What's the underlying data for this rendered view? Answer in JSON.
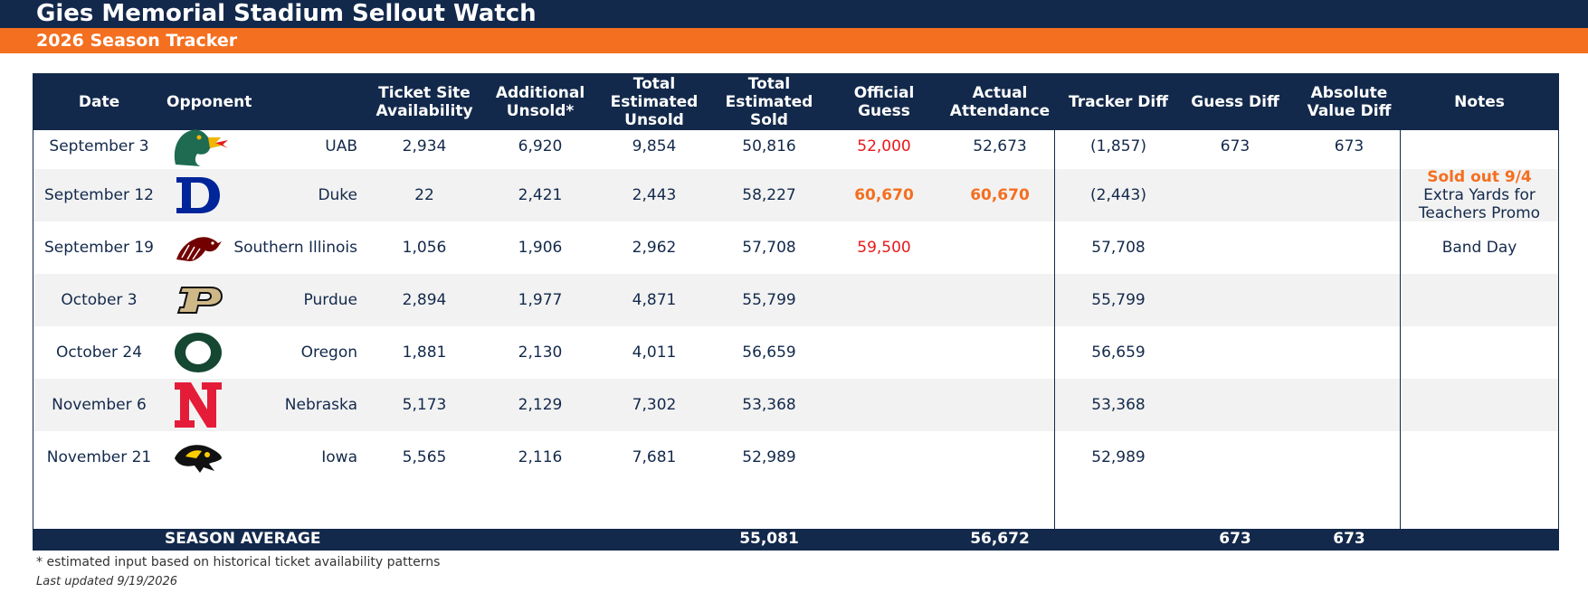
{
  "title": "Gies Memorial Stadium Sellout Watch",
  "subtitle": "2026 Season Tracker",
  "headers": {
    "date": "Date",
    "opponent": "Opponent",
    "ticket_site": [
      "Ticket Site",
      "Availability"
    ],
    "additional_unsold": [
      "Additional",
      "Unsold*"
    ],
    "total_unsold": [
      "Total",
      "Estimated",
      "Unsold"
    ],
    "total_sold": [
      "Total",
      "Estimated",
      "Sold"
    ],
    "official_guess": [
      "Official",
      "Guess"
    ],
    "actual_attendance": [
      "Actual",
      "Attendance"
    ],
    "tracker_diff": "Tracker Diff",
    "guess_diff": "Guess Diff",
    "abs_diff": [
      "Absolute",
      "Value Diff"
    ],
    "notes": "Notes"
  },
  "rows": [
    {
      "date": "September 3",
      "logo": "uab-dragon-logo",
      "opponent": "UAB",
      "ticket_site": "2,934",
      "additional_unsold": "6,920",
      "total_unsold": "9,854",
      "total_sold": "50,816",
      "official_guess": "52,000",
      "guess_style": "red",
      "actual": "52,673",
      "actual_style": "normal",
      "tracker_diff": "(1,857)",
      "guess_diff": "673",
      "abs_diff": "673",
      "note_highlight": "",
      "note_lines": []
    },
    {
      "date": "September 12",
      "logo": "duke-d-logo",
      "opponent": "Duke",
      "ticket_site": "22",
      "additional_unsold": "2,421",
      "total_unsold": "2,443",
      "total_sold": "58,227",
      "official_guess": "60,670",
      "guess_style": "orange",
      "actual": "60,670",
      "actual_style": "orange",
      "tracker_diff": "(2,443)",
      "guess_diff": "",
      "abs_diff": "",
      "note_highlight": "Sold out 9/4",
      "note_lines": [
        "Extra Yards for",
        "Teachers Promo"
      ]
    },
    {
      "date": "September 19",
      "logo": "saluki-logo",
      "opponent": "Southern Illinois",
      "ticket_site": "1,056",
      "additional_unsold": "1,906",
      "total_unsold": "2,962",
      "total_sold": "57,708",
      "official_guess": "59,500",
      "guess_style": "red",
      "actual": "",
      "actual_style": "normal",
      "tracker_diff": "57,708",
      "guess_diff": "",
      "abs_diff": "",
      "note_highlight": "",
      "note_lines": [
        "Band Day"
      ]
    },
    {
      "date": "October 3",
      "logo": "purdue-p-logo",
      "opponent": "Purdue",
      "ticket_site": "2,894",
      "additional_unsold": "1,977",
      "total_unsold": "4,871",
      "total_sold": "55,799",
      "official_guess": "",
      "guess_style": "red",
      "actual": "",
      "actual_style": "normal",
      "tracker_diff": "55,799",
      "guess_diff": "",
      "abs_diff": "",
      "note_highlight": "",
      "note_lines": []
    },
    {
      "date": "October 24",
      "logo": "oregon-o-logo",
      "opponent": "Oregon",
      "ticket_site": "1,881",
      "additional_unsold": "2,130",
      "total_unsold": "4,011",
      "total_sold": "56,659",
      "official_guess": "",
      "guess_style": "red",
      "actual": "",
      "actual_style": "normal",
      "tracker_diff": "56,659",
      "guess_diff": "",
      "abs_diff": "",
      "note_highlight": "",
      "note_lines": []
    },
    {
      "date": "November 6",
      "logo": "nebraska-n-logo",
      "opponent": "Nebraska",
      "ticket_site": "5,173",
      "additional_unsold": "2,129",
      "total_unsold": "7,302",
      "total_sold": "53,368",
      "official_guess": "",
      "guess_style": "red",
      "actual": "",
      "actual_style": "normal",
      "tracker_diff": "53,368",
      "guess_diff": "",
      "abs_diff": "",
      "note_highlight": "",
      "note_lines": []
    },
    {
      "date": "November 21",
      "logo": "iowa-hawkeye-logo",
      "opponent": "Iowa",
      "ticket_site": "5,565",
      "additional_unsold": "2,116",
      "total_unsold": "7,681",
      "total_sold": "52,989",
      "official_guess": "",
      "guess_style": "red",
      "actual": "",
      "actual_style": "normal",
      "tracker_diff": "52,989",
      "guess_diff": "",
      "abs_diff": "",
      "note_highlight": "",
      "note_lines": []
    }
  ],
  "footer": {
    "label": "SEASON AVERAGE",
    "total_sold": "55,081",
    "actual": "56,672",
    "guess_diff": "673",
    "abs_diff": "673"
  },
  "footnote": "* estimated input based on historical ticket availability patterns",
  "last_updated": "Last updated 9/19/2026",
  "colors": {
    "navy": "#13294B",
    "orange": "#F46F20",
    "red": "#E8191A"
  }
}
